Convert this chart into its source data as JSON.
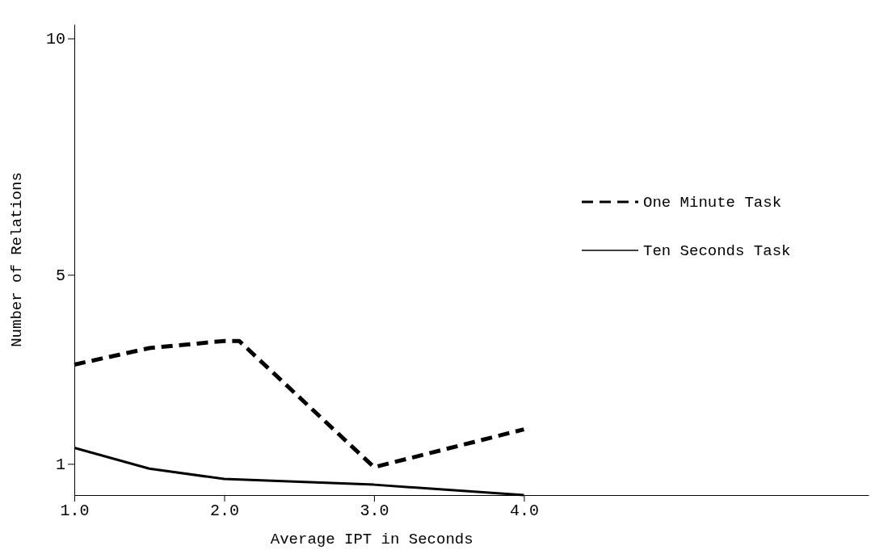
{
  "chart_data": {
    "type": "line",
    "xlabel": "Average IPT in Seconds",
    "ylabel": "Number of Relations",
    "xlim": [
      1,
      6.3
    ],
    "xticks": [
      {
        "value": 1,
        "label": "1.0"
      },
      {
        "value": 2,
        "label": "2.0"
      },
      {
        "value": 3,
        "label": "3.0"
      },
      {
        "value": 4,
        "label": "4.0"
      }
    ],
    "ylim": [
      0.34,
      10.3
    ],
    "yticks": [
      1,
      5,
      10
    ],
    "legend": "right",
    "grid": false,
    "series": [
      {
        "name": "One Minute Task",
        "color": "#000000",
        "line_style": "dashed",
        "x": [
          1,
          1.5,
          2,
          2.1,
          3,
          4
        ],
        "values": [
          3.1,
          3.45,
          3.6,
          3.6,
          0.93,
          1.73
        ]
      },
      {
        "name": "Ten Seconds Task",
        "color": "#000000",
        "line_style": "solid",
        "x": [
          1,
          1.5,
          2,
          3,
          4
        ],
        "values": [
          1.34,
          0.9,
          0.68,
          0.56,
          0.34
        ]
      }
    ]
  }
}
